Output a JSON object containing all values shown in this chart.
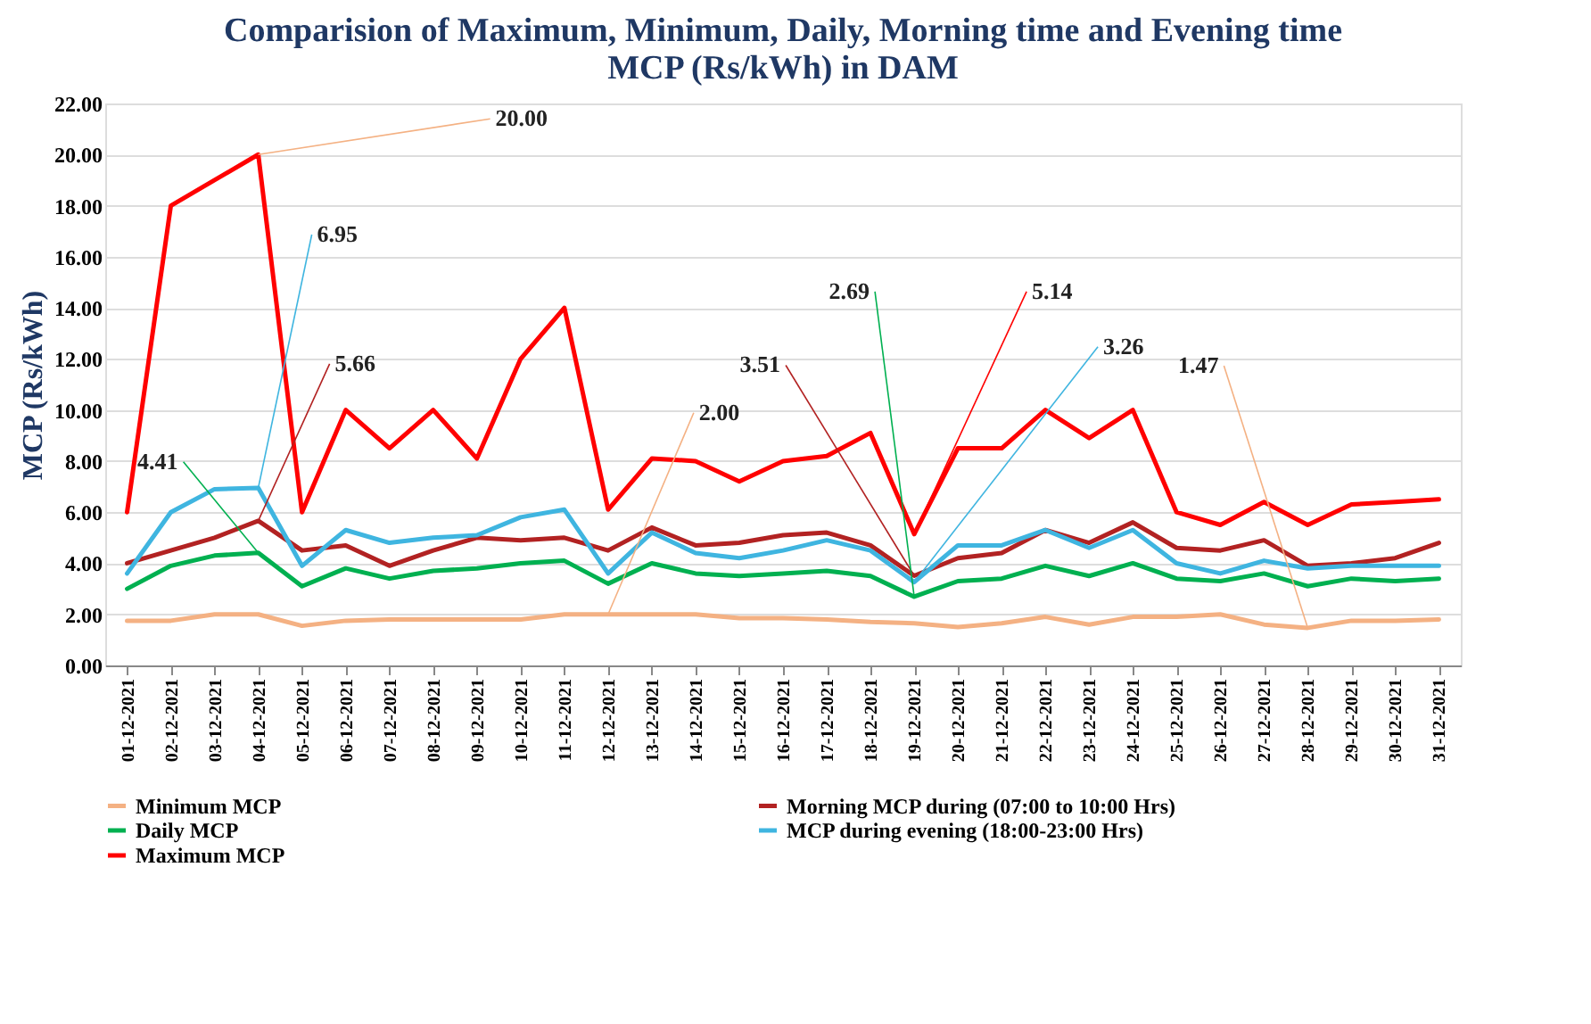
{
  "chart_data": {
    "type": "line",
    "title": [
      "Comparision of Maximum, Minimum, Daily, Morning time and  Evening time",
      "MCP (Rs/kWh) in DAM"
    ],
    "ylabel": "MCP (Rs/kWh)",
    "categories": [
      "01-12-2021",
      "02-12-2021",
      "03-12-2021",
      "04-12-2021",
      "05-12-2021",
      "06-12-2021",
      "07-12-2021",
      "08-12-2021",
      "09-12-2021",
      "10-12-2021",
      "11-12-2021",
      "12-12-2021",
      "13-12-2021",
      "14-12-2021",
      "15-12-2021",
      "16-12-2021",
      "17-12-2021",
      "18-12-2021",
      "19-12-2021",
      "20-12-2021",
      "21-12-2021",
      "22-12-2021",
      "23-12-2021",
      "24-12-2021",
      "25-12-2021",
      "26-12-2021",
      "27-12-2021",
      "28-12-2021",
      "29-12-2021",
      "30-12-2021",
      "31-12-2021"
    ],
    "series": [
      {
        "name": "Minimum MCP",
        "color": "#f4b183",
        "values": [
          1.75,
          1.75,
          2.0,
          2.0,
          1.55,
          1.75,
          1.8,
          1.8,
          1.8,
          1.8,
          2.0,
          2.0,
          2.0,
          2.0,
          1.85,
          1.85,
          1.8,
          1.7,
          1.65,
          1.5,
          1.65,
          1.9,
          1.6,
          1.9,
          1.9,
          2.0,
          1.6,
          1.47,
          1.75,
          1.75,
          1.8
        ]
      },
      {
        "name": "Morning MCP  during (07:00 to 10:00 Hrs)",
        "color": "#b22222",
        "values": [
          4.0,
          4.5,
          5.0,
          5.66,
          4.5,
          4.7,
          3.9,
          4.5,
          5.0,
          4.9,
          5.0,
          4.5,
          5.4,
          4.7,
          4.8,
          5.1,
          5.2,
          4.7,
          3.51,
          4.2,
          4.4,
          5.3,
          4.8,
          5.6,
          4.6,
          4.5,
          4.9,
          3.9,
          4.0,
          4.2,
          4.8
        ]
      },
      {
        "name": "Daily MCP",
        "color": "#00b050",
        "values": [
          3.0,
          3.9,
          4.3,
          4.41,
          3.1,
          3.8,
          3.4,
          3.7,
          3.8,
          4.0,
          4.1,
          3.2,
          4.0,
          3.6,
          3.5,
          3.6,
          3.7,
          3.5,
          2.69,
          3.3,
          3.4,
          3.9,
          3.5,
          4.0,
          3.4,
          3.3,
          3.6,
          3.1,
          3.4,
          3.3,
          3.4
        ]
      },
      {
        "name": "MCP  during evening (18:00-23:00 Hrs)",
        "color": "#3fb5e0",
        "values": [
          3.6,
          6.0,
          6.9,
          6.95,
          3.9,
          5.3,
          4.8,
          5.0,
          5.1,
          5.8,
          6.1,
          3.6,
          5.2,
          4.4,
          4.2,
          4.5,
          4.9,
          4.5,
          3.26,
          4.7,
          4.7,
          5.3,
          4.6,
          5.3,
          4.0,
          3.6,
          4.1,
          3.8,
          3.9,
          3.9,
          3.9
        ]
      },
      {
        "name": "Maximum MCP",
        "color": "#ff0000",
        "values": [
          6.0,
          18.0,
          19.0,
          20.0,
          6.0,
          10.0,
          8.5,
          10.0,
          8.1,
          12.0,
          14.0,
          6.1,
          8.1,
          8.0,
          7.2,
          8.0,
          8.2,
          9.1,
          5.14,
          8.5,
          8.5,
          10.0,
          8.9,
          10.0,
          6.0,
          5.5,
          6.4,
          5.5,
          6.3,
          6.4,
          6.5
        ]
      }
    ],
    "annotations": [
      {
        "text": "20.00",
        "x": "04-12-2021",
        "y": 20.0
      },
      {
        "text": "6.95",
        "x": "04-12-2021",
        "y": 6.95
      },
      {
        "text": "5.66",
        "x": "04-12-2021",
        "y": 5.66
      },
      {
        "text": "4.41",
        "x": "04-12-2021",
        "y": 4.41
      },
      {
        "text": "2.00",
        "x": "12-12-2021",
        "y": 2.0
      },
      {
        "text": "3.51",
        "x": "19-12-2021",
        "y": 3.51
      },
      {
        "text": "2.69",
        "x": "19-12-2021",
        "y": 2.69
      },
      {
        "text": "5.14",
        "x": "19-12-2021",
        "y": 5.14
      },
      {
        "text": "3.26",
        "x": "19-12-2021",
        "y": 3.26
      },
      {
        "text": "1.47",
        "x": "28-12-2021",
        "y": 1.47
      }
    ],
    "ylim": [
      0,
      22
    ],
    "yticks": [
      {
        "value": 0,
        "label": "0.00"
      },
      {
        "value": 2,
        "label": "2.00"
      },
      {
        "value": 4,
        "label": "4.00"
      },
      {
        "value": 6,
        "label": "6.00"
      },
      {
        "value": 8,
        "label": "8.00"
      },
      {
        "value": 10,
        "label": "10.00"
      },
      {
        "value": 12,
        "label": "12.00"
      },
      {
        "value": 14,
        "label": "14.00"
      },
      {
        "value": 16,
        "label": "16.00"
      },
      {
        "value": 18,
        "label": "18.00"
      },
      {
        "value": 20,
        "label": "20.00"
      },
      {
        "value": 22,
        "label": "22.00"
      }
    ],
    "grid": "y",
    "legend": "bottom",
    "marker": "none",
    "line_style": "solid"
  }
}
